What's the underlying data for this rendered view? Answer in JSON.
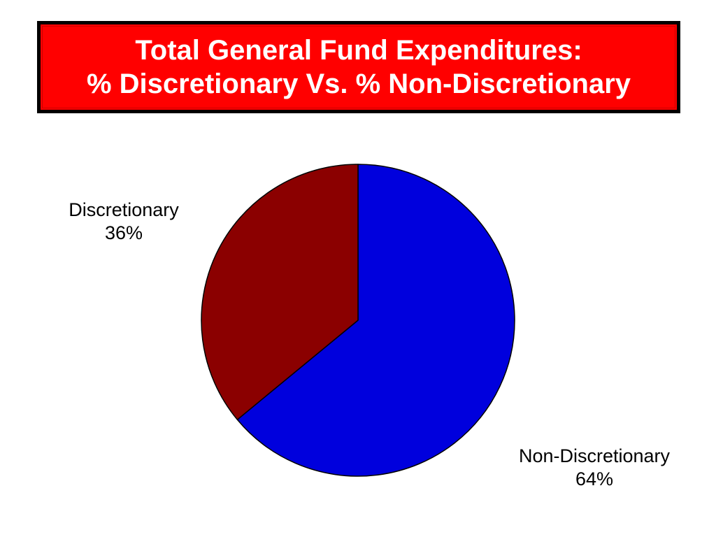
{
  "title": {
    "line1": "Total General Fund Expenditures:",
    "line2": "% Discretionary Vs. % Non-Discretionary"
  },
  "colors": {
    "title_background": "#ff0000",
    "title_text": "#ffffff",
    "discretionary": "#8b0000",
    "non_discretionary": "#0000dd"
  },
  "chart_data": {
    "type": "pie",
    "title": "Total General Fund Expenditures: % Discretionary Vs. % Non-Discretionary",
    "slices": [
      {
        "label": "Non-Discretionary",
        "value": 64,
        "display": "64%",
        "color": "#0000dd"
      },
      {
        "label": "Discretionary",
        "value": 36,
        "display": "36%",
        "color": "#8b0000"
      }
    ],
    "start": "12 o'clock",
    "direction": "clockwise",
    "legend": "none"
  }
}
